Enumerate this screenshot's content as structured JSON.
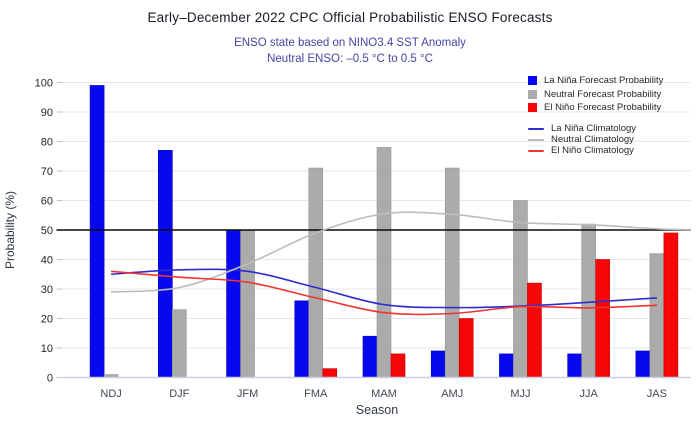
{
  "page": {
    "background": "#ffffff"
  },
  "title": {
    "text": "Early–December 2022 CPC Official Probabilistic ENSO Forecasts",
    "color": "#1b1b26"
  },
  "subtitle": {
    "line1": "ENSO state based on NINO3.4 SST Anomaly",
    "line2": "Neutral ENSO: –0.5 °C to 0.5 °C",
    "color": "#4545a6"
  },
  "legend": {
    "bar_items": [
      {
        "label": "La Niña Forecast Probability",
        "color": "#0808f0"
      },
      {
        "label": "Neutral Forecast Probability",
        "color": "#ababab"
      },
      {
        "label": "El Niño Forecast Probability",
        "color": "#f60606"
      }
    ],
    "line_items": [
      {
        "label": "La Niña Climatology",
        "color": "#2d2dcb"
      },
      {
        "label": "Neutral Climatology",
        "color": "#bcbcbc"
      },
      {
        "label": "El Niño Climatology",
        "color": "#f03434"
      }
    ]
  },
  "chart_data": {
    "type": "bar",
    "title": "Early–December 2022 CPC Official Probabilistic ENSO Forecasts",
    "subtitle1": "ENSO state based on NINO3.4 SST Anomaly",
    "subtitle2": "Neutral ENSO: –0.5 °C to 0.5 °C",
    "categories": [
      "NDJ",
      "DJF",
      "JFM",
      "FMA",
      "MAM",
      "AMJ",
      "MJJ",
      "JJA",
      "JAS"
    ],
    "series": [
      {
        "name": "La Niña Forecast Probability",
        "kind": "bar",
        "color": "#0808f0",
        "edge": "#0000b8",
        "values": [
          99,
          77,
          50,
          26,
          14,
          9,
          8,
          8,
          9
        ]
      },
      {
        "name": "Neutral Forecast Probability",
        "kind": "bar",
        "color": "#ababab",
        "edge": "#979797",
        "values": [
          1,
          23,
          50,
          71,
          78,
          71,
          60,
          52,
          42
        ]
      },
      {
        "name": "El Niño Forecast Probability",
        "kind": "bar",
        "color": "#f60606",
        "edge": "#c40000",
        "values": [
          0,
          0,
          0,
          3,
          8,
          20,
          32,
          40,
          49
        ]
      },
      {
        "name": "La Niña Climatology",
        "kind": "line",
        "color": "#2d2dcb",
        "values": [
          35,
          36.5,
          36,
          30.5,
          24.7,
          23.7,
          24.2,
          25.5,
          27
        ]
      },
      {
        "name": "Neutral Climatology",
        "kind": "line",
        "color": "#bcbcbc",
        "values": [
          29,
          30.5,
          38.5,
          49,
          55.5,
          55.3,
          52.5,
          51.8,
          50.4
        ],
        "edge_value": 50.1
      },
      {
        "name": "El Niño Climatology",
        "kind": "line",
        "color": "#f03434",
        "values": [
          36,
          34,
          32.3,
          27,
          22,
          21.7,
          24,
          23.6,
          24.5
        ]
      }
    ],
    "reference_line": {
      "value": 50,
      "color": "#0a0a0a"
    },
    "xlabel": "Season",
    "ylabel": "Probability (%)",
    "ylim": [
      0,
      100
    ],
    "ytick_step": 10,
    "grid": true,
    "legend_position": "top-right",
    "colors": {
      "gridline": "#e8e8ec",
      "axis_line": "#c9cfe3",
      "tick": "#c2c2c8",
      "ytick_label": "#26262b",
      "xtick_label": "#3e4754"
    }
  }
}
